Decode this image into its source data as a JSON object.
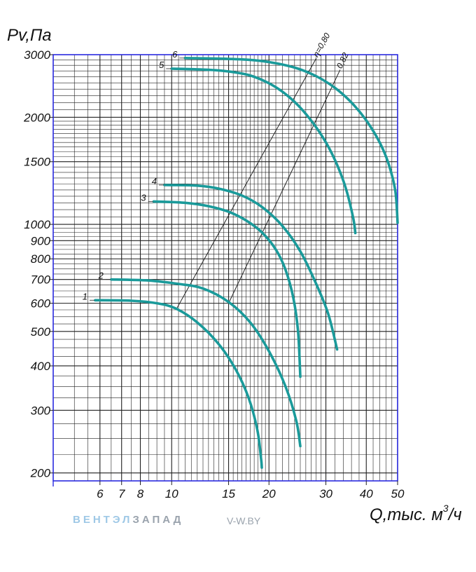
{
  "colors": {
    "curve": "#1a9a9a",
    "grid": "#1f1f1f",
    "frame": "#2a2ae0",
    "efficiency_line": "#222222"
  },
  "chart_data": {
    "type": "line",
    "x_scale": "log",
    "y_scale": "log",
    "xlim": [
      4.3,
      50
    ],
    "ylim": [
      190,
      3000
    ],
    "ylabel": "Pv,Па",
    "xlabel": "Q,тыс. м",
    "xlabel_superscript": "3",
    "xlabel_suffix": "/ч",
    "x_ticks": [
      6,
      7,
      8,
      10,
      15,
      20,
      30,
      40,
      50
    ],
    "x_tick_labels": [
      "6",
      "7",
      "8",
      "10",
      "15",
      "20",
      "30",
      "40",
      "50"
    ],
    "y_ticks": [
      200,
      300,
      400,
      500,
      600,
      700,
      800,
      900,
      1000,
      1500,
      2000,
      3000
    ],
    "y_tick_labels": [
      "200",
      "300",
      "400",
      "500",
      "600",
      "700",
      "800",
      "900",
      "1000",
      "1500",
      "2000",
      "3000"
    ],
    "grid": true,
    "series": [
      {
        "name": "1",
        "points": [
          [
            5.8,
            612
          ],
          [
            7.5,
            610
          ],
          [
            9.0,
            600
          ],
          [
            10.3,
            580
          ],
          [
            12.0,
            530
          ],
          [
            14.0,
            460
          ],
          [
            15.8,
            390
          ],
          [
            17.3,
            325
          ],
          [
            18.4,
            265
          ],
          [
            18.9,
            220
          ],
          [
            19.0,
            207
          ]
        ]
      },
      {
        "name": "2",
        "points": [
          [
            6.5,
            700
          ],
          [
            8.5,
            695
          ],
          [
            10.5,
            680
          ],
          [
            12.5,
            660
          ],
          [
            15.0,
            605
          ],
          [
            17.5,
            530
          ],
          [
            20.0,
            440
          ],
          [
            22.5,
            350
          ],
          [
            24.3,
            280
          ],
          [
            25.0,
            238
          ]
        ]
      },
      {
        "name": "3",
        "points": [
          [
            8.8,
            1160
          ],
          [
            11.0,
            1150
          ],
          [
            13.0,
            1125
          ],
          [
            15.0,
            1085
          ],
          [
            17.0,
            1025
          ],
          [
            19.0,
            950
          ],
          [
            21.0,
            850
          ],
          [
            22.5,
            745
          ],
          [
            23.8,
            620
          ],
          [
            24.6,
            500
          ],
          [
            25.0,
            373
          ]
        ]
      },
      {
        "name": "4",
        "points": [
          [
            9.5,
            1290
          ],
          [
            12.0,
            1285
          ],
          [
            14.0,
            1260
          ],
          [
            16.5,
            1205
          ],
          [
            19.0,
            1120
          ],
          [
            22.0,
            990
          ],
          [
            25.0,
            840
          ],
          [
            28.0,
            680
          ],
          [
            30.5,
            560
          ],
          [
            32.5,
            445
          ]
        ]
      },
      {
        "name": "5",
        "points": [
          [
            10.0,
            2740
          ],
          [
            13.0,
            2720
          ],
          [
            15.5,
            2680
          ],
          [
            18.0,
            2600
          ],
          [
            21.0,
            2430
          ],
          [
            24.0,
            2210
          ],
          [
            27.0,
            1960
          ],
          [
            30.0,
            1700
          ],
          [
            32.5,
            1470
          ],
          [
            34.7,
            1250
          ],
          [
            36.5,
            1035
          ],
          [
            37.0,
            945
          ]
        ]
      },
      {
        "name": "6",
        "points": [
          [
            11.0,
            2935
          ],
          [
            14.0,
            2925
          ],
          [
            17.0,
            2905
          ],
          [
            20.0,
            2860
          ],
          [
            24.0,
            2760
          ],
          [
            28.0,
            2610
          ],
          [
            32.0,
            2420
          ],
          [
            36.0,
            2200
          ],
          [
            40.0,
            1960
          ],
          [
            44.0,
            1700
          ],
          [
            47.0,
            1470
          ],
          [
            49.2,
            1240
          ],
          [
            50.0,
            1010
          ]
        ]
      }
    ],
    "efficiency_lines": [
      {
        "label": "η=0,80",
        "from": [
          10.4,
          583
        ],
        "to": [
          28.0,
          2930
        ]
      },
      {
        "label": "0,82",
        "from": [
          15.0,
          600
        ],
        "to": [
          33.2,
          2720
        ]
      }
    ]
  },
  "watermark": {
    "brand_part1": "ВЕНТЭЛ",
    "brand_part2": "ЗАПАД",
    "site": "V-W.BY"
  }
}
